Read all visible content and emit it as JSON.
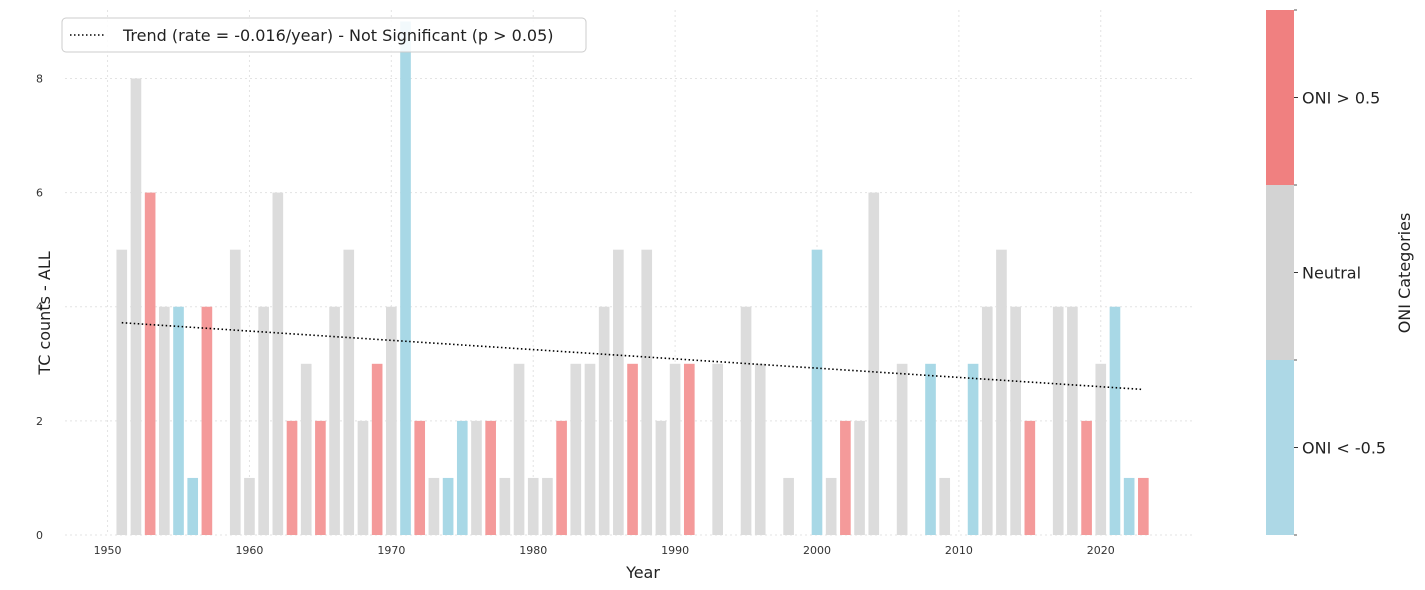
{
  "chart_data": {
    "type": "bar",
    "xlabel": "Year",
    "ylabel": "TC counts - ALL",
    "xlim": [
      1947,
      2026.5
    ],
    "ylim": [
      0,
      9.2
    ],
    "xticks": [
      1950,
      1960,
      1970,
      1980,
      1990,
      2000,
      2010,
      2020
    ],
    "yticks": [
      0,
      2,
      4,
      6,
      8
    ],
    "grid": true,
    "legend": {
      "position": "top-left",
      "label": "Trend (rate = -0.016/year) - Not Significant (p > 0.05)"
    },
    "trend": {
      "x": [
        1951,
        2023
      ],
      "y": [
        3.72,
        2.55
      ],
      "style": "dotted",
      "color": "#000000"
    },
    "category_colors": {
      "la_nina": "#a8d8e6",
      "neutral": "#dcdcdc",
      "el_nino": "#f49a9a"
    },
    "colorbar": {
      "title": "ONI Categories",
      "labels": [
        "ONI < -0.5",
        "Neutral",
        "ONI > 0.5"
      ],
      "colors": [
        "#add8e6",
        "#d3d3d3",
        "#f08080"
      ]
    },
    "bars": [
      {
        "year": 1951,
        "value": 5,
        "category": "neutral"
      },
      {
        "year": 1952,
        "value": 8,
        "category": "neutral"
      },
      {
        "year": 1953,
        "value": 6,
        "category": "el_nino"
      },
      {
        "year": 1954,
        "value": 4,
        "category": "neutral"
      },
      {
        "year": 1955,
        "value": 4,
        "category": "la_nina"
      },
      {
        "year": 1956,
        "value": 1,
        "category": "la_nina"
      },
      {
        "year": 1957,
        "value": 4,
        "category": "el_nino"
      },
      {
        "year": 1959,
        "value": 5,
        "category": "neutral"
      },
      {
        "year": 1960,
        "value": 1,
        "category": "neutral"
      },
      {
        "year": 1961,
        "value": 4,
        "category": "neutral"
      },
      {
        "year": 1962,
        "value": 6,
        "category": "neutral"
      },
      {
        "year": 1963,
        "value": 2,
        "category": "el_nino"
      },
      {
        "year": 1964,
        "value": 3,
        "category": "neutral"
      },
      {
        "year": 1965,
        "value": 2,
        "category": "el_nino"
      },
      {
        "year": 1966,
        "value": 4,
        "category": "neutral"
      },
      {
        "year": 1967,
        "value": 5,
        "category": "neutral"
      },
      {
        "year": 1968,
        "value": 2,
        "category": "neutral"
      },
      {
        "year": 1969,
        "value": 3,
        "category": "el_nino"
      },
      {
        "year": 1970,
        "value": 4,
        "category": "neutral"
      },
      {
        "year": 1971,
        "value": 9,
        "category": "la_nina"
      },
      {
        "year": 1972,
        "value": 2,
        "category": "el_nino"
      },
      {
        "year": 1973,
        "value": 1,
        "category": "neutral"
      },
      {
        "year": 1974,
        "value": 1,
        "category": "la_nina"
      },
      {
        "year": 1975,
        "value": 2,
        "category": "la_nina"
      },
      {
        "year": 1976,
        "value": 2,
        "category": "neutral"
      },
      {
        "year": 1977,
        "value": 2,
        "category": "el_nino"
      },
      {
        "year": 1978,
        "value": 1,
        "category": "neutral"
      },
      {
        "year": 1979,
        "value": 3,
        "category": "neutral"
      },
      {
        "year": 1980,
        "value": 1,
        "category": "neutral"
      },
      {
        "year": 1981,
        "value": 1,
        "category": "neutral"
      },
      {
        "year": 1982,
        "value": 2,
        "category": "el_nino"
      },
      {
        "year": 1983,
        "value": 3,
        "category": "neutral"
      },
      {
        "year": 1984,
        "value": 3,
        "category": "neutral"
      },
      {
        "year": 1985,
        "value": 4,
        "category": "neutral"
      },
      {
        "year": 1986,
        "value": 5,
        "category": "neutral"
      },
      {
        "year": 1987,
        "value": 3,
        "category": "el_nino"
      },
      {
        "year": 1988,
        "value": 5,
        "category": "neutral"
      },
      {
        "year": 1989,
        "value": 2,
        "category": "neutral"
      },
      {
        "year": 1990,
        "value": 3,
        "category": "neutral"
      },
      {
        "year": 1991,
        "value": 3,
        "category": "el_nino"
      },
      {
        "year": 1993,
        "value": 3,
        "category": "neutral"
      },
      {
        "year": 1995,
        "value": 4,
        "category": "neutral"
      },
      {
        "year": 1996,
        "value": 3,
        "category": "neutral"
      },
      {
        "year": 1998,
        "value": 1,
        "category": "neutral"
      },
      {
        "year": 2000,
        "value": 5,
        "category": "la_nina"
      },
      {
        "year": 2001,
        "value": 1,
        "category": "neutral"
      },
      {
        "year": 2002,
        "value": 2,
        "category": "el_nino"
      },
      {
        "year": 2003,
        "value": 2,
        "category": "neutral"
      },
      {
        "year": 2004,
        "value": 6,
        "category": "neutral"
      },
      {
        "year": 2006,
        "value": 3,
        "category": "neutral"
      },
      {
        "year": 2008,
        "value": 3,
        "category": "la_nina"
      },
      {
        "year": 2009,
        "value": 1,
        "category": "neutral"
      },
      {
        "year": 2011,
        "value": 3,
        "category": "la_nina"
      },
      {
        "year": 2012,
        "value": 4,
        "category": "neutral"
      },
      {
        "year": 2013,
        "value": 5,
        "category": "neutral"
      },
      {
        "year": 2014,
        "value": 4,
        "category": "neutral"
      },
      {
        "year": 2015,
        "value": 2,
        "category": "el_nino"
      },
      {
        "year": 2017,
        "value": 4,
        "category": "neutral"
      },
      {
        "year": 2018,
        "value": 4,
        "category": "neutral"
      },
      {
        "year": 2019,
        "value": 2,
        "category": "el_nino"
      },
      {
        "year": 2020,
        "value": 3,
        "category": "neutral"
      },
      {
        "year": 2021,
        "value": 4,
        "category": "la_nina"
      },
      {
        "year": 2022,
        "value": 1,
        "category": "la_nina"
      },
      {
        "year": 2023,
        "value": 1,
        "category": "el_nino"
      }
    ]
  }
}
